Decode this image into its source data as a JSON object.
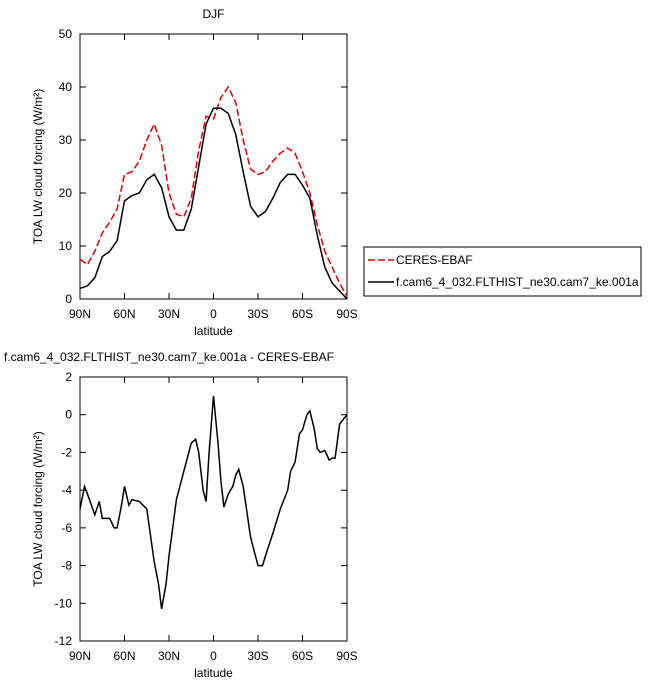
{
  "chart_data": [
    {
      "type": "line",
      "title": "DJF",
      "xlabel": "latitude",
      "ylabel": "TOA LW cloud forcing (W/m²)",
      "legend": "right",
      "x": [
        90,
        85,
        80,
        75,
        70,
        65,
        60,
        55,
        50,
        45,
        40,
        35,
        30,
        25,
        20,
        15,
        10,
        5,
        0,
        -5,
        -10,
        -15,
        -20,
        -25,
        -30,
        -35,
        -40,
        -45,
        -50,
        -55,
        -60,
        -65,
        -70,
        -75,
        -80,
        -85,
        -90
      ],
      "series": [
        {
          "name": "CERES-EBAF",
          "color": "#e00000",
          "line_style": "dashed",
          "values": [
            7.5,
            6.5,
            9,
            12.5,
            14.5,
            17,
            23.5,
            24,
            26,
            30,
            33,
            29,
            20,
            16,
            15.5,
            19,
            28,
            34.5,
            34,
            38,
            40,
            37,
            30,
            24.5,
            23.5,
            24,
            26,
            27.5,
            28.5,
            27.5,
            24,
            20,
            14,
            9,
            6,
            3,
            0.5
          ]
        },
        {
          "name": "f.cam6_4_032.FLTHIST_ne30.cam7_ke.001a",
          "color": "#000000",
          "line_style": "solid",
          "values": [
            2,
            2.5,
            4,
            8,
            9,
            11,
            18.5,
            19.5,
            20,
            22.5,
            23.5,
            21,
            15.5,
            13,
            13,
            17,
            25,
            33,
            36,
            36,
            35,
            31,
            24,
            17.5,
            15.5,
            16.5,
            19,
            22,
            23.5,
            23.5,
            21.5,
            19,
            12,
            6,
            3,
            1.5,
            0
          ]
        }
      ],
      "xlim": [
        90,
        -90
      ],
      "xticks": [
        {
          "value": 90,
          "label": "90N"
        },
        {
          "value": 60,
          "label": "60N"
        },
        {
          "value": 30,
          "label": "30N"
        },
        0,
        {
          "value": -30,
          "label": "30S"
        },
        {
          "value": -60,
          "label": "60S"
        },
        {
          "value": -90,
          "label": "90S"
        }
      ],
      "ylim": [
        0,
        50
      ],
      "yticks": [
        0,
        10,
        20,
        30,
        40,
        50
      ]
    },
    {
      "type": "line",
      "title": "f.cam6_4_032.FLTHIST_ne30.cam7_ke.001a - CERES-EBAF",
      "xlabel": "latitude",
      "ylabel": "TOA LW cloud forcing (W/m²)",
      "x": [
        90,
        87,
        85,
        80,
        77,
        75,
        70,
        67,
        65,
        62,
        60,
        57,
        55,
        50,
        45,
        40,
        37,
        35,
        32,
        30,
        25,
        20,
        15,
        12,
        10,
        7,
        5,
        3,
        0,
        -3,
        -5,
        -7,
        -10,
        -13,
        -15,
        -17,
        -20,
        -25,
        -30,
        -33,
        -35,
        -40,
        -45,
        -50,
        -52,
        -55,
        -58,
        -60,
        -63,
        -65,
        -68,
        -70,
        -72,
        -75,
        -78,
        -80,
        -82,
        -85,
        -90
      ],
      "series": [
        {
          "color": "#000000",
          "line_style": "solid",
          "values": [
            -5,
            -3.8,
            -4.2,
            -5.3,
            -4.6,
            -5.5,
            -5.5,
            -6,
            -6,
            -4.8,
            -3.8,
            -4.8,
            -4.5,
            -4.6,
            -5,
            -7.8,
            -9,
            -10.3,
            -9,
            -7.5,
            -4.5,
            -3,
            -1.5,
            -1.3,
            -2,
            -4,
            -4.6,
            -2,
            1,
            -1.5,
            -3.5,
            -4.9,
            -4.2,
            -3.8,
            -3.2,
            -2.9,
            -3.8,
            -6.5,
            -8,
            -8,
            -7.5,
            -6.3,
            -5,
            -4,
            -3,
            -2.5,
            -1,
            -0.8,
            0,
            0.2,
            -0.8,
            -1.8,
            -2,
            -1.9,
            -2.4,
            -2.3,
            -2.3,
            -0.5,
            0
          ]
        }
      ],
      "xlim": [
        90,
        -90
      ],
      "xticks": [
        {
          "value": 90,
          "label": "90N"
        },
        {
          "value": 60,
          "label": "60N"
        },
        {
          "value": 30,
          "label": "30N"
        },
        0,
        {
          "value": -30,
          "label": "30S"
        },
        {
          "value": -60,
          "label": "60S"
        },
        {
          "value": -90,
          "label": "90S"
        }
      ],
      "ylim": [
        -12,
        2
      ],
      "yticks": [
        2,
        0,
        -2,
        -4,
        -6,
        -8,
        -10,
        -12
      ]
    }
  ]
}
